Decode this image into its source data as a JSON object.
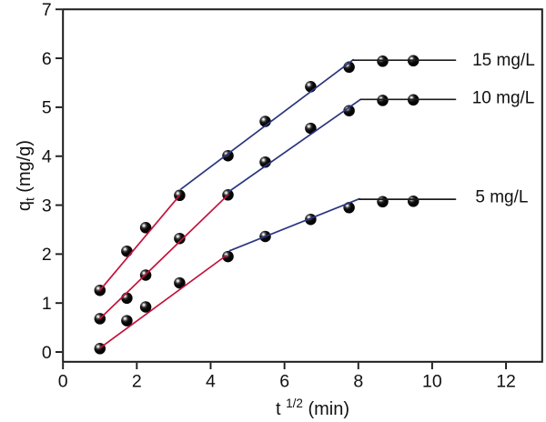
{
  "figure": {
    "background": "#ffffff",
    "axis_color": "#1b1b1b",
    "text_color": "#111111",
    "marker": "black-sphere"
  },
  "chart_data": {
    "type": "scatter",
    "title": "",
    "xlabel": {
      "base": "t",
      "sup": "1/2",
      "rest": " (min)"
    },
    "ylabel": {
      "base": "q",
      "sub": "t",
      "rest": " (mg/g)"
    },
    "xlim": [
      0,
      12.98
    ],
    "ylim": [
      -0.2,
      7
    ],
    "xticks": [
      0,
      2,
      4,
      6,
      8,
      10,
      12
    ],
    "yticks": [
      0,
      1,
      2,
      3,
      4,
      5,
      6,
      7
    ],
    "grid": false,
    "legend_position": "inline-right",
    "series": [
      {
        "name": "15 mg/L",
        "points": [
          [
            1.0,
            1.26
          ],
          [
            1.73,
            2.06
          ],
          [
            2.24,
            2.54
          ],
          [
            3.16,
            3.2
          ],
          [
            4.47,
            4.01
          ],
          [
            5.48,
            4.71
          ],
          [
            6.71,
            5.42
          ],
          [
            7.75,
            5.82
          ],
          [
            8.66,
            5.94
          ],
          [
            9.49,
            5.95
          ]
        ],
        "fit_segments": [
          {
            "stage": "first",
            "color": "#c2123b",
            "from": [
              1.0,
              1.26
            ],
            "to": [
              3.16,
              3.2
            ]
          },
          {
            "stage": "second",
            "color": "#2a3680",
            "from": [
              3.2,
              3.33
            ],
            "to": [
              7.86,
              5.97
            ]
          },
          {
            "stage": "plateau",
            "color": "#1b1b1b",
            "from": [
              7.86,
              5.96
            ],
            "to": [
              10.63,
              5.96
            ]
          }
        ],
        "label_xy": [
          11.09,
          5.98
        ]
      },
      {
        "name": "10 mg/L",
        "points": [
          [
            1.0,
            0.68
          ],
          [
            1.73,
            1.1
          ],
          [
            2.24,
            1.57
          ],
          [
            3.16,
            2.32
          ],
          [
            4.47,
            3.21
          ],
          [
            5.48,
            3.88
          ],
          [
            6.71,
            4.57
          ],
          [
            7.75,
            4.93
          ],
          [
            8.66,
            5.14
          ],
          [
            9.49,
            5.15
          ]
        ],
        "fit_segments": [
          {
            "stage": "first",
            "color": "#c2123b",
            "from": [
              1.0,
              0.68
            ],
            "to": [
              4.47,
              3.21
            ]
          },
          {
            "stage": "second",
            "color": "#2a3680",
            "from": [
              4.5,
              3.28
            ],
            "to": [
              8.06,
              5.16
            ]
          },
          {
            "stage": "plateau",
            "color": "#1b1b1b",
            "from": [
              8.06,
              5.16
            ],
            "to": [
              10.63,
              5.16
            ]
          }
        ],
        "label_xy": [
          11.08,
          5.21
        ]
      },
      {
        "name": "5 mg/L",
        "points": [
          [
            1.0,
            0.07
          ],
          [
            1.73,
            0.64
          ],
          [
            2.24,
            0.92
          ],
          [
            3.16,
            1.41
          ],
          [
            4.47,
            1.95
          ],
          [
            5.48,
            2.36
          ],
          [
            6.71,
            2.71
          ],
          [
            7.75,
            2.95
          ],
          [
            8.66,
            3.07
          ],
          [
            9.49,
            3.08
          ]
        ],
        "fit_segments": [
          {
            "stage": "first",
            "color": "#c2123b",
            "from": [
              1.0,
              0.08
            ],
            "to": [
              4.42,
              1.97
            ]
          },
          {
            "stage": "second",
            "color": "#2a3680",
            "from": [
              4.52,
              2.07
            ],
            "to": [
              8.03,
              3.13
            ]
          },
          {
            "stage": "plateau",
            "color": "#1b1b1b",
            "from": [
              8.03,
              3.12
            ],
            "to": [
              10.63,
              3.12
            ]
          }
        ],
        "label_xy": [
          11.17,
          3.19
        ]
      }
    ]
  }
}
